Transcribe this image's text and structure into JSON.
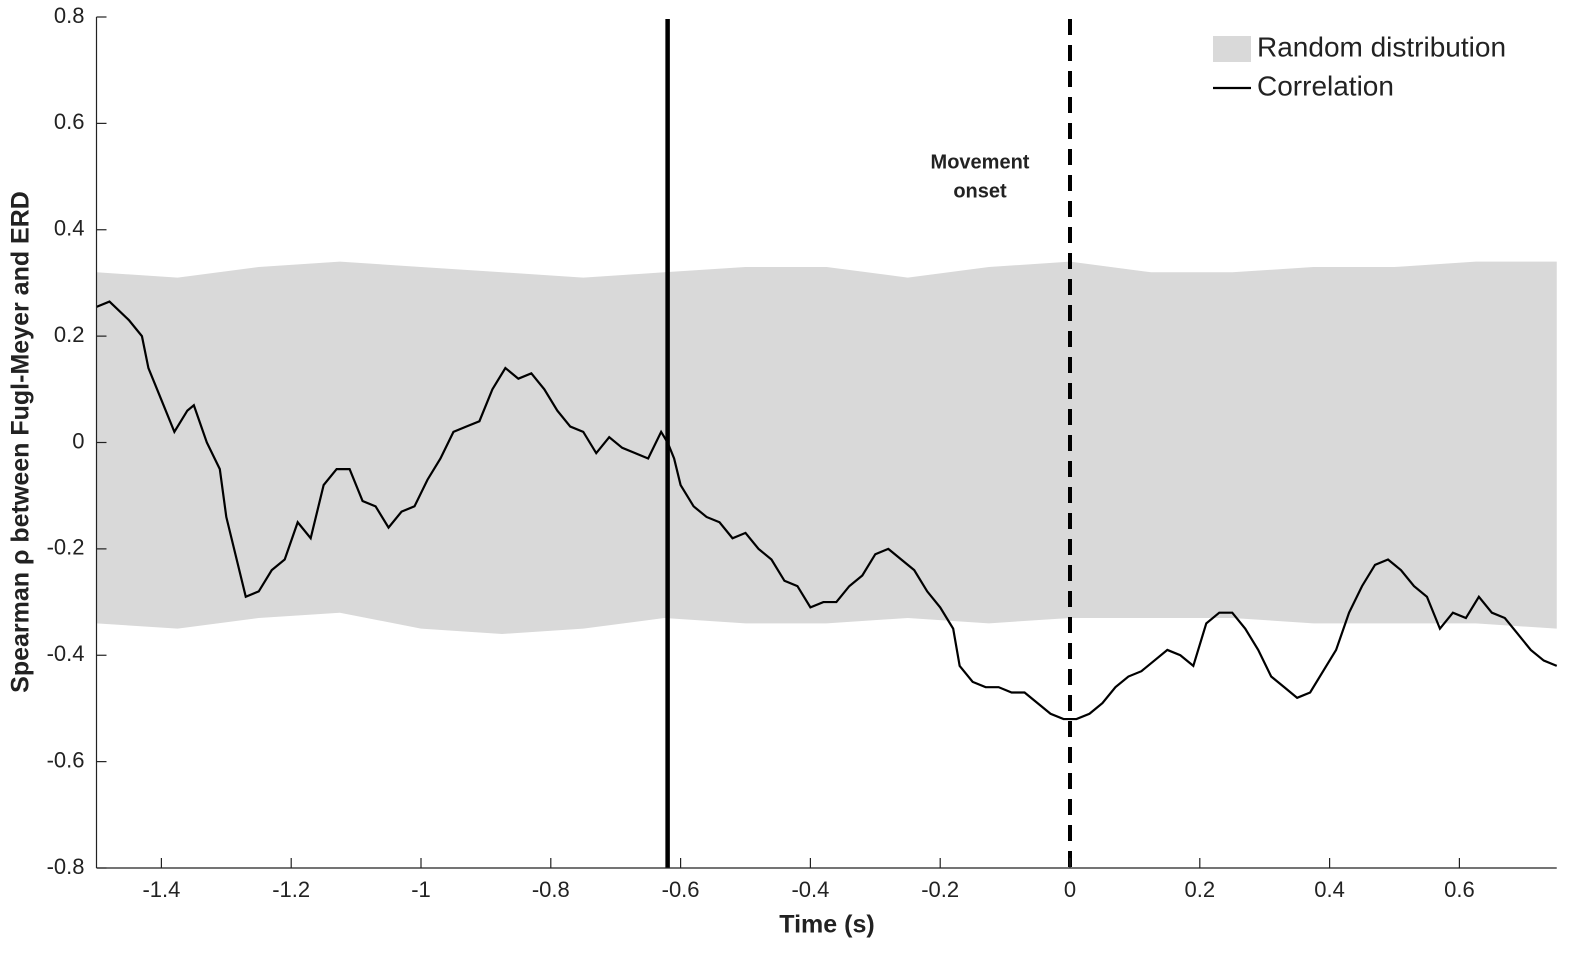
{
  "chart_data": {
    "type": "line",
    "xlabel": "Time (s)",
    "ylabel": "Spearman ρ between Fugl-Meyer and ERD",
    "xlim": [
      -1.5,
      0.75
    ],
    "ylim": [
      -0.8,
      0.8
    ],
    "xticks": [
      -1.4,
      -1.2,
      -1,
      -0.8,
      -0.6,
      -0.4,
      -0.2,
      0,
      0.2,
      0.4,
      0.6
    ],
    "yticks": [
      -0.8,
      -0.6,
      -0.4,
      -0.2,
      0,
      0.2,
      0.4,
      0.6,
      0.8
    ],
    "legend": "upper right",
    "series": [
      {
        "name": "Random distribution",
        "color": "#d9d9d9",
        "x": [
          -1.5,
          -1.375,
          -1.25,
          -1.125,
          -1,
          -0.875,
          -0.75,
          -0.625,
          -0.5,
          -0.375,
          -0.25,
          -0.125,
          0,
          0.125,
          0.25,
          0.375,
          0.5,
          0.625,
          0.75
        ],
        "upper": [
          0.32,
          0.31,
          0.33,
          0.34,
          0.33,
          0.32,
          0.31,
          0.32,
          0.33,
          0.33,
          0.31,
          0.33,
          0.34,
          0.32,
          0.32,
          0.33,
          0.33,
          0.34,
          0.34
        ],
        "lower": [
          -0.34,
          -0.35,
          -0.33,
          -0.32,
          -0.35,
          -0.36,
          -0.35,
          -0.33,
          -0.34,
          -0.34,
          -0.33,
          -0.34,
          -0.33,
          -0.33,
          -0.33,
          -0.34,
          -0.34,
          -0.34,
          -0.35
        ]
      },
      {
        "name": "Correlation",
        "color": "#000000",
        "x": [
          -1.5,
          -1.48,
          -1.45,
          -1.43,
          -1.42,
          -1.4,
          -1.38,
          -1.36,
          -1.35,
          -1.33,
          -1.31,
          -1.3,
          -1.28,
          -1.27,
          -1.25,
          -1.23,
          -1.21,
          -1.19,
          -1.17,
          -1.15,
          -1.13,
          -1.11,
          -1.09,
          -1.07,
          -1.05,
          -1.03,
          -1.01,
          -0.99,
          -0.97,
          -0.95,
          -0.93,
          -0.91,
          -0.89,
          -0.87,
          -0.85,
          -0.83,
          -0.81,
          -0.79,
          -0.77,
          -0.75,
          -0.73,
          -0.71,
          -0.69,
          -0.67,
          -0.65,
          -0.63,
          -0.62,
          -0.61,
          -0.6,
          -0.58,
          -0.56,
          -0.54,
          -0.52,
          -0.5,
          -0.48,
          -0.46,
          -0.44,
          -0.42,
          -0.4,
          -0.38,
          -0.36,
          -0.34,
          -0.32,
          -0.3,
          -0.28,
          -0.26,
          -0.24,
          -0.22,
          -0.2,
          -0.18,
          -0.17,
          -0.15,
          -0.13,
          -0.11,
          -0.09,
          -0.07,
          -0.05,
          -0.03,
          -0.01,
          0.01,
          0.03,
          0.05,
          0.07,
          0.09,
          0.11,
          0.13,
          0.15,
          0.17,
          0.19,
          0.21,
          0.23,
          0.25,
          0.27,
          0.29,
          0.31,
          0.33,
          0.35,
          0.37,
          0.39,
          0.41,
          0.43,
          0.45,
          0.47,
          0.49,
          0.51,
          0.53,
          0.55,
          0.57,
          0.59,
          0.61,
          0.63,
          0.65,
          0.67,
          0.69,
          0.71,
          0.73,
          0.75
        ],
        "values": [
          0.255,
          0.265,
          0.23,
          0.2,
          0.14,
          0.08,
          0.02,
          0.06,
          0.07,
          0.0,
          -0.05,
          -0.14,
          -0.24,
          -0.29,
          -0.28,
          -0.24,
          -0.22,
          -0.15,
          -0.18,
          -0.08,
          -0.05,
          -0.05,
          -0.11,
          -0.12,
          -0.16,
          -0.13,
          -0.12,
          -0.07,
          -0.03,
          0.02,
          0.03,
          0.04,
          0.1,
          0.14,
          0.12,
          0.13,
          0.1,
          0.06,
          0.03,
          0.02,
          -0.02,
          0.01,
          -0.01,
          -0.02,
          -0.03,
          0.02,
          0.0,
          -0.03,
          -0.08,
          -0.12,
          -0.14,
          -0.15,
          -0.18,
          -0.17,
          -0.2,
          -0.22,
          -0.26,
          -0.27,
          -0.31,
          -0.3,
          -0.3,
          -0.27,
          -0.25,
          -0.21,
          -0.2,
          -0.22,
          -0.24,
          -0.28,
          -0.31,
          -0.35,
          -0.42,
          -0.45,
          -0.46,
          -0.46,
          -0.47,
          -0.47,
          -0.49,
          -0.51,
          -0.52,
          -0.52,
          -0.51,
          -0.49,
          -0.46,
          -0.44,
          -0.43,
          -0.41,
          -0.39,
          -0.4,
          -0.42,
          -0.34,
          -0.32,
          -0.32,
          -0.35,
          -0.39,
          -0.44,
          -0.46,
          -0.48,
          -0.47,
          -0.43,
          -0.39,
          -0.32,
          -0.27,
          -0.23,
          -0.22,
          -0.24,
          -0.27,
          -0.29,
          -0.35,
          -0.32,
          -0.33,
          -0.29,
          -0.32,
          -0.33,
          -0.36,
          -0.39,
          -0.41,
          -0.42
        ]
      }
    ],
    "vlines": [
      {
        "x": -0.62,
        "style": "solid"
      },
      {
        "x": 0,
        "style": "dashed"
      }
    ],
    "annotation": [
      "Movement",
      "onset"
    ]
  }
}
